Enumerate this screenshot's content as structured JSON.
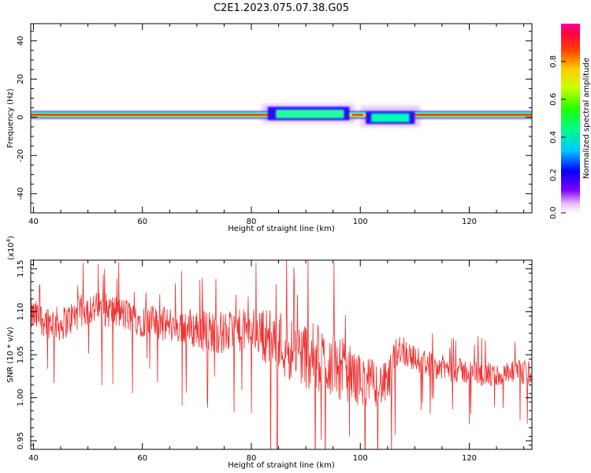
{
  "figure": {
    "title": "C2E1.2023.075.07.38.G05"
  },
  "chart_data": [
    {
      "type": "heatmap",
      "title": "",
      "xlabel": "Height of straight line (km)",
      "ylabel": "Frequency (Hz)",
      "xlim": [
        39.5,
        131.5
      ],
      "ylim": [
        -50,
        49
      ],
      "xticks": [
        40,
        60,
        80,
        100,
        120
      ],
      "yticks": [
        -40,
        -20,
        0,
        20,
        40
      ],
      "xtick_labels": [
        "40",
        "60",
        "80",
        "100",
        "120"
      ],
      "ytick_labels": [
        "-40",
        "-20",
        "0",
        "20",
        "40"
      ],
      "grid": false,
      "colorbar": {
        "label": "Normalized spectral amplitude",
        "range": [
          0,
          1
        ],
        "ticks": [
          0.0,
          0.2,
          0.4,
          0.6,
          0.8
        ],
        "tick_labels": [
          "0.0",
          "0.2",
          "0.4",
          "0.6",
          "0.8"
        ],
        "colormap": "rainbow (violet low, red high, magenta top)"
      },
      "features": [
        {
          "description": "strong narrow band near 0-2 Hz",
          "x_range": [
            40,
            131
          ],
          "freq_center": 1,
          "amplitude": 0.9
        },
        {
          "description": "broadened band",
          "x_range": [
            82,
            98
          ],
          "freq_center": 2,
          "amplitude": 0.5
        },
        {
          "description": "broadened band",
          "x_range": [
            100,
            110
          ],
          "freq_center": 0,
          "amplitude": 0.5
        }
      ]
    },
    {
      "type": "line",
      "title": "",
      "xlabel": "Height of straight line (km)",
      "ylabel": "SNR (10 * v/v)",
      "y_multiplier_label": "(x10",
      "y_multiplier_exponent": "4",
      "y_multiplier_close": ")",
      "xlim": [
        39.5,
        131.5
      ],
      "ylim": [
        0.94,
        1.16
      ],
      "xticks": [
        40,
        60,
        80,
        100,
        120
      ],
      "yticks": [
        0.95,
        1.0,
        1.05,
        1.1,
        1.15
      ],
      "xtick_labels": [
        "40",
        "60",
        "80",
        "100",
        "120"
      ],
      "ytick_labels": [
        "0.95",
        "1.00",
        "1.05",
        "1.10",
        "1.15"
      ],
      "grid": false,
      "color": "#ee3333",
      "series_trend": {
        "x": [
          40,
          45,
          50,
          55,
          60,
          65,
          70,
          75,
          80,
          85,
          90,
          95,
          100,
          105,
          107,
          110,
          115,
          120,
          125,
          131
        ],
        "y": [
          1.095,
          1.085,
          1.105,
          1.1,
          1.09,
          1.085,
          1.08,
          1.075,
          1.08,
          1.065,
          1.05,
          1.04,
          1.02,
          1.015,
          1.06,
          1.045,
          1.035,
          1.03,
          1.025,
          1.03
        ],
        "noise_amplitude": [
          0.02,
          0.02,
          0.02,
          0.02,
          0.02,
          0.02,
          0.025,
          0.025,
          0.025,
          0.04,
          0.04,
          0.04,
          0.03,
          0.025,
          0.02,
          0.015,
          0.015,
          0.015,
          0.015,
          0.015
        ]
      },
      "sample_count": 1100
    }
  ]
}
